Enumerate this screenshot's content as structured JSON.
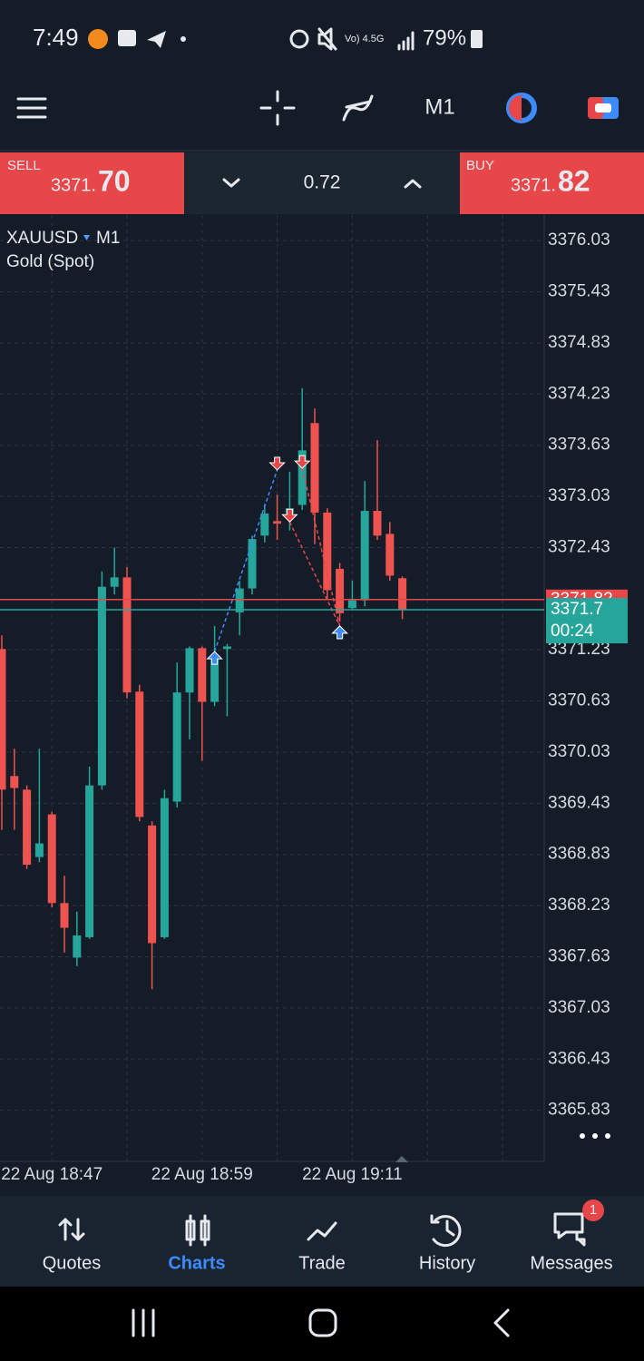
{
  "status_bar": {
    "time": "7:49",
    "battery": "79%"
  },
  "toolbar": {
    "timeframe": "M1"
  },
  "trade_bar": {
    "sell_label": "SELL",
    "sell_price_small": "3371.",
    "sell_price_big": "70",
    "volume": "0.72",
    "buy_label": "BUY",
    "buy_price_small": "3371.",
    "buy_price_big": "82"
  },
  "symbol": {
    "name": "XAUUSD",
    "timeframe": "M1",
    "description": "Gold (Spot)"
  },
  "chart_data": {
    "type": "candlestick",
    "categories": [
      null,
      null,
      null,
      null,
      "22 Aug 18:47",
      null,
      null,
      null,
      null,
      null,
      null,
      null,
      null,
      null,
      null,
      null,
      "22 Aug 18:59",
      null,
      null,
      null,
      null,
      null,
      null,
      null,
      null,
      null,
      null,
      null,
      "22 Aug 19:11",
      null,
      null,
      null,
      null
    ],
    "open": [
      3371.24,
      3369.75,
      3369.59,
      3368.8,
      3369.3,
      3368.26,
      3367.62,
      3367.86,
      3369.64,
      3371.97,
      3372.08,
      3370.74,
      3369.17,
      3367.86,
      3369.45,
      3370.73,
      3371.25,
      3370.62,
      3371.24,
      3371.67,
      3371.95,
      3372.57,
      3372.74,
      3372.83,
      3372.93,
      3373.89,
      3372.84,
      3372.18,
      3371.72,
      3371.81,
      3372.86,
      3372.59,
      3372.07
    ],
    "high": [
      3371.4,
      3370.07,
      3369.64,
      3370.07,
      3369.33,
      3368.58,
      3368.16,
      3369.86,
      3372.15,
      3372.43,
      3372.2,
      3370.82,
      3369.22,
      3369.59,
      3371.08,
      3371.27,
      3371.27,
      3371.51,
      3371.3,
      3372.04,
      3372.57,
      3372.94,
      3373.05,
      3373.32,
      3374.3,
      3374.06,
      3372.89,
      3372.25,
      3372.04,
      3373.21,
      3373.69,
      3372.73,
      3372.09
    ],
    "low": [
      3369.12,
      3369.12,
      3368.66,
      3368.74,
      3368.21,
      3367.68,
      3367.52,
      3367.84,
      3369.59,
      3371.88,
      3370.66,
      3369.22,
      3367.25,
      3367.84,
      3369.38,
      3370.18,
      3369.93,
      3370.57,
      3370.45,
      3371.4,
      3371.88,
      3372.49,
      3372.52,
      3372.63,
      3372.87,
      3372.47,
      3371.83,
      3371.56,
      3371.7,
      3371.74,
      3372.52,
      3372.04,
      3371.59
    ],
    "close": [
      3369.59,
      3369.61,
      3368.71,
      3368.96,
      3368.26,
      3367.97,
      3367.88,
      3369.64,
      3371.97,
      3372.08,
      3370.73,
      3369.27,
      3367.79,
      3369.49,
      3370.73,
      3371.25,
      3370.62,
      3371.17,
      3371.27,
      3371.95,
      3372.53,
      3372.83,
      3372.71,
      3372.89,
      3373.57,
      3372.84,
      3371.93,
      3371.66,
      3371.81,
      3372.86,
      3372.57,
      3372.1,
      3371.7
    ],
    "up_color": "#26a69a",
    "down_color": "#ef5350",
    "ylim": [
      3365.23,
      3376.33
    ],
    "yticks": [
      3376.03,
      3375.43,
      3374.83,
      3374.23,
      3373.63,
      3373.03,
      3372.43,
      3371.23,
      3370.63,
      3370.03,
      3369.43,
      3368.83,
      3368.23,
      3367.63,
      3367.03,
      3366.43,
      3365.83
    ],
    "grid": true,
    "ask": 3371.82,
    "bid": 3371.7,
    "countdown": "00:24",
    "trades": [
      {
        "dir": "buy",
        "open_index": 17,
        "open_price": 3371.21,
        "close_index": 22,
        "close_price": 3373.34
      },
      {
        "dir": "sell",
        "open_index": 23,
        "open_price": 3372.73,
        "close_index": 27,
        "close_price": 3371.51
      },
      {
        "dir": "sell",
        "open_index": 24,
        "open_price": 3373.36,
        "close_index": 27,
        "close_price": 3371.51
      }
    ]
  },
  "bottom_nav": {
    "items": [
      "Quotes",
      "Charts",
      "Trade",
      "History",
      "Messages"
    ],
    "badge": "1"
  }
}
